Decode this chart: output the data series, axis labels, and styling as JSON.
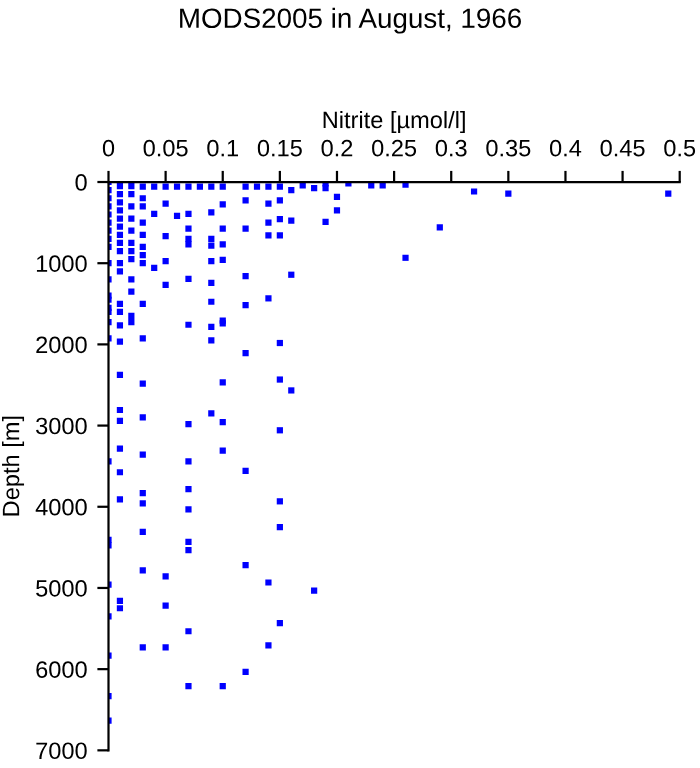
{
  "chart_data": {
    "type": "scatter",
    "title": "MODS2005 in August, 1966",
    "xlabel": "Nitrite [µmol/l]",
    "ylabel": "Depth [m]",
    "x": [
      0,
      0,
      0,
      0,
      0,
      0,
      0,
      0,
      0,
      0,
      0,
      0,
      0,
      0,
      0,
      0,
      0,
      0,
      0,
      0,
      0,
      0,
      0,
      0,
      0,
      0.01,
      0.01,
      0.01,
      0.01,
      0.01,
      0.01,
      0.01,
      0.01,
      0.01,
      0.01,
      0.01,
      0.01,
      0.01,
      0.01,
      0.01,
      0.01,
      0.01,
      0.01,
      0.01,
      0.01,
      0.01,
      0.01,
      0.01,
      0.02,
      0.02,
      0.02,
      0.02,
      0.02,
      0.02,
      0.02,
      0.02,
      0.02,
      0.02,
      0.02,
      0.02,
      0.03,
      0.03,
      0.03,
      0.03,
      0.03,
      0.03,
      0.03,
      0.03,
      0.03,
      0.03,
      0.03,
      0.03,
      0.03,
      0.03,
      0.03,
      0.03,
      0.03,
      0.03,
      0.04,
      0.04,
      0.04,
      0.05,
      0.05,
      0.05,
      0.05,
      0.05,
      0.05,
      0.05,
      0.05,
      0.06,
      0.06,
      0.07,
      0.07,
      0.07,
      0.07,
      0.07,
      0.07,
      0.07,
      0.07,
      0.07,
      0.07,
      0.07,
      0.07,
      0.07,
      0.07,
      0.07,
      0.08,
      0.09,
      0.09,
      0.09,
      0.09,
      0.09,
      0.09,
      0.09,
      0.09,
      0.09,
      0.09,
      0.1,
      0.1,
      0.1,
      0.1,
      0.1,
      0.1,
      0.1,
      0.1,
      0.1,
      0.1,
      0.1,
      0.12,
      0.12,
      0.12,
      0.12,
      0.12,
      0.12,
      0.12,
      0.12,
      0.12,
      0.13,
      0.14,
      0.14,
      0.14,
      0.14,
      0.14,
      0.14,
      0.14,
      0.15,
      0.15,
      0.15,
      0.15,
      0.15,
      0.15,
      0.15,
      0.15,
      0.15,
      0.15,
      0.16,
      0.16,
      0.16,
      0.16,
      0.17,
      0.18,
      0.18,
      0.19,
      0.19,
      0.19,
      0.2,
      0.2,
      0.21,
      0.23,
      0.24,
      0.26,
      0.26,
      0.29,
      0.32,
      0.35,
      0.49
    ],
    "values": [
      0,
      100,
      200,
      300,
      400,
      500,
      600,
      700,
      800,
      1000,
      1200,
      1400,
      1600,
      1725,
      1925,
      3442,
      4408,
      4475,
      4958,
      5350,
      5833,
      6333,
      6633,
      1450,
      1550,
      50,
      150,
      250,
      350,
      450,
      550,
      650,
      750,
      1000,
      1100,
      1500,
      1767,
      1967,
      2375,
      2808,
      2942,
      3283,
      3575,
      3908,
      5158,
      5250,
      850,
      1600,
      50,
      150,
      300,
      450,
      600,
      750,
      850,
      950,
      1200,
      1350,
      1650,
      1725,
      58,
      200,
      300,
      500,
      650,
      800,
      900,
      1000,
      1500,
      1925,
      2483,
      2900,
      3358,
      3833,
      3958,
      4308,
      4783,
      5733,
      58,
      392,
      1058,
      58,
      267,
      667,
      975,
      1267,
      4858,
      5217,
      5733,
      58,
      417,
      58,
      392,
      575,
      767,
      1192,
      1758,
      2983,
      3442,
      3783,
      4033,
      4433,
      4533,
      5533,
      6208,
      700,
      58,
      58,
      375,
      783,
      975,
      1242,
      1475,
      1783,
      1950,
      2850,
      700,
      58,
      275,
      575,
      767,
      958,
      1708,
      1742,
      2467,
      2958,
      3308,
      6208,
      58,
      225,
      575,
      1158,
      1517,
      2108,
      3558,
      4720,
      6033,
      58,
      58,
      267,
      500,
      658,
      1433,
      4933,
      5708,
      58,
      225,
      458,
      658,
      1983,
      2433,
      3058,
      3933,
      4250,
      5433,
      100,
      475,
      1142,
      2567,
      42,
      75,
      5033,
      17,
      75,
      492,
      183,
      350,
      17,
      42,
      42,
      33,
      933,
      558,
      117,
      142,
      142
    ],
    "color": "#0000ff",
    "marker": "square",
    "xlim": [
      0,
      0.5
    ],
    "xticks": [
      0,
      0.05,
      0.1,
      0.15,
      0.2,
      0.25,
      0.3,
      0.35,
      0.4,
      0.45,
      0.5
    ],
    "ylim": [
      7000,
      0
    ],
    "yticks": [
      0,
      1000,
      2000,
      3000,
      4000,
      5000,
      6000,
      7000
    ],
    "grid": false,
    "legend": false
  }
}
